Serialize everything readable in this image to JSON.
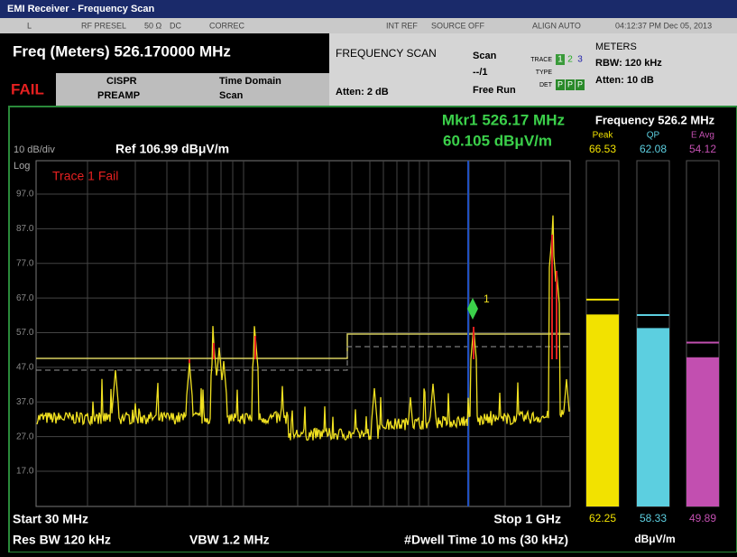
{
  "title_bar": "EMI Receiver - Frequency Scan",
  "status_bar": [
    "L",
    "RF PRESEL",
    "50 Ω",
    "DC",
    "CORREC",
    "INT REF",
    "SOURCE OFF",
    "ALIGN AUTO",
    "04:12:37 PM Dec 05, 2013"
  ],
  "settings": {
    "freq": "Freq (Meters) 526.170000 MHz",
    "fail": "FAIL",
    "preamp": [
      "CISPR",
      "PREAMP"
    ],
    "time_domain": [
      "Time Domain",
      "Scan"
    ],
    "mode": "FREQUENCY SCAN",
    "atten": "Atten: 2 dB",
    "scan": [
      "Scan",
      "--/1",
      "Free Run"
    ],
    "trace": {
      "labels": [
        "TRACE",
        "TYPE",
        "DET"
      ],
      "numbers": [
        "1",
        "2",
        "3"
      ],
      "det": [
        "P",
        "P",
        "P"
      ]
    },
    "meters": [
      "METERS",
      "RBW: 120 kHz",
      "Atten: 10 dB"
    ]
  },
  "graph": {
    "scale": "10 dB/div",
    "log": "Log",
    "ref": "Ref 106.99 dBμV/m",
    "marker": [
      "Mkr1  526.17 MHz",
      "60.105 dBμV/m"
    ],
    "marker_number": "1",
    "fail_label": "Trace 1 Fail",
    "y_labels": [
      {
        "value": 97,
        "label": "97.0"
      },
      {
        "value": 87,
        "label": "87.0"
      },
      {
        "value": 77,
        "label": "77.0"
      },
      {
        "value": 67,
        "label": "67.0"
      },
      {
        "value": 57,
        "label": "57.0"
      },
      {
        "value": 47,
        "label": "47.0"
      },
      {
        "value": 37,
        "label": "37.0"
      },
      {
        "value": 27,
        "label": "27.0"
      },
      {
        "value": 17,
        "label": "17.0"
      }
    ],
    "start": "Start 30 MHz",
    "stop": "Stop 1 GHz",
    "res_bw": "Res BW 120 kHz",
    "vbw": "VBW 1.2 MHz",
    "dwell": "#Dwell Time 10 ms (30 kHz)"
  },
  "meter_panel": {
    "title": "Frequency 526.2 MHz",
    "unit": "dBμV/m",
    "meters": [
      {
        "name": "Peak",
        "color": "#f2e200",
        "limit": 66.53,
        "value": 62.25
      },
      {
        "name": "QP",
        "color": "#5ccfe0",
        "limit": 62.08,
        "value": 58.33
      },
      {
        "name": "E Avg",
        "color": "#c24fb0",
        "limit": 54.12,
        "value": 49.89
      }
    ]
  }
}
